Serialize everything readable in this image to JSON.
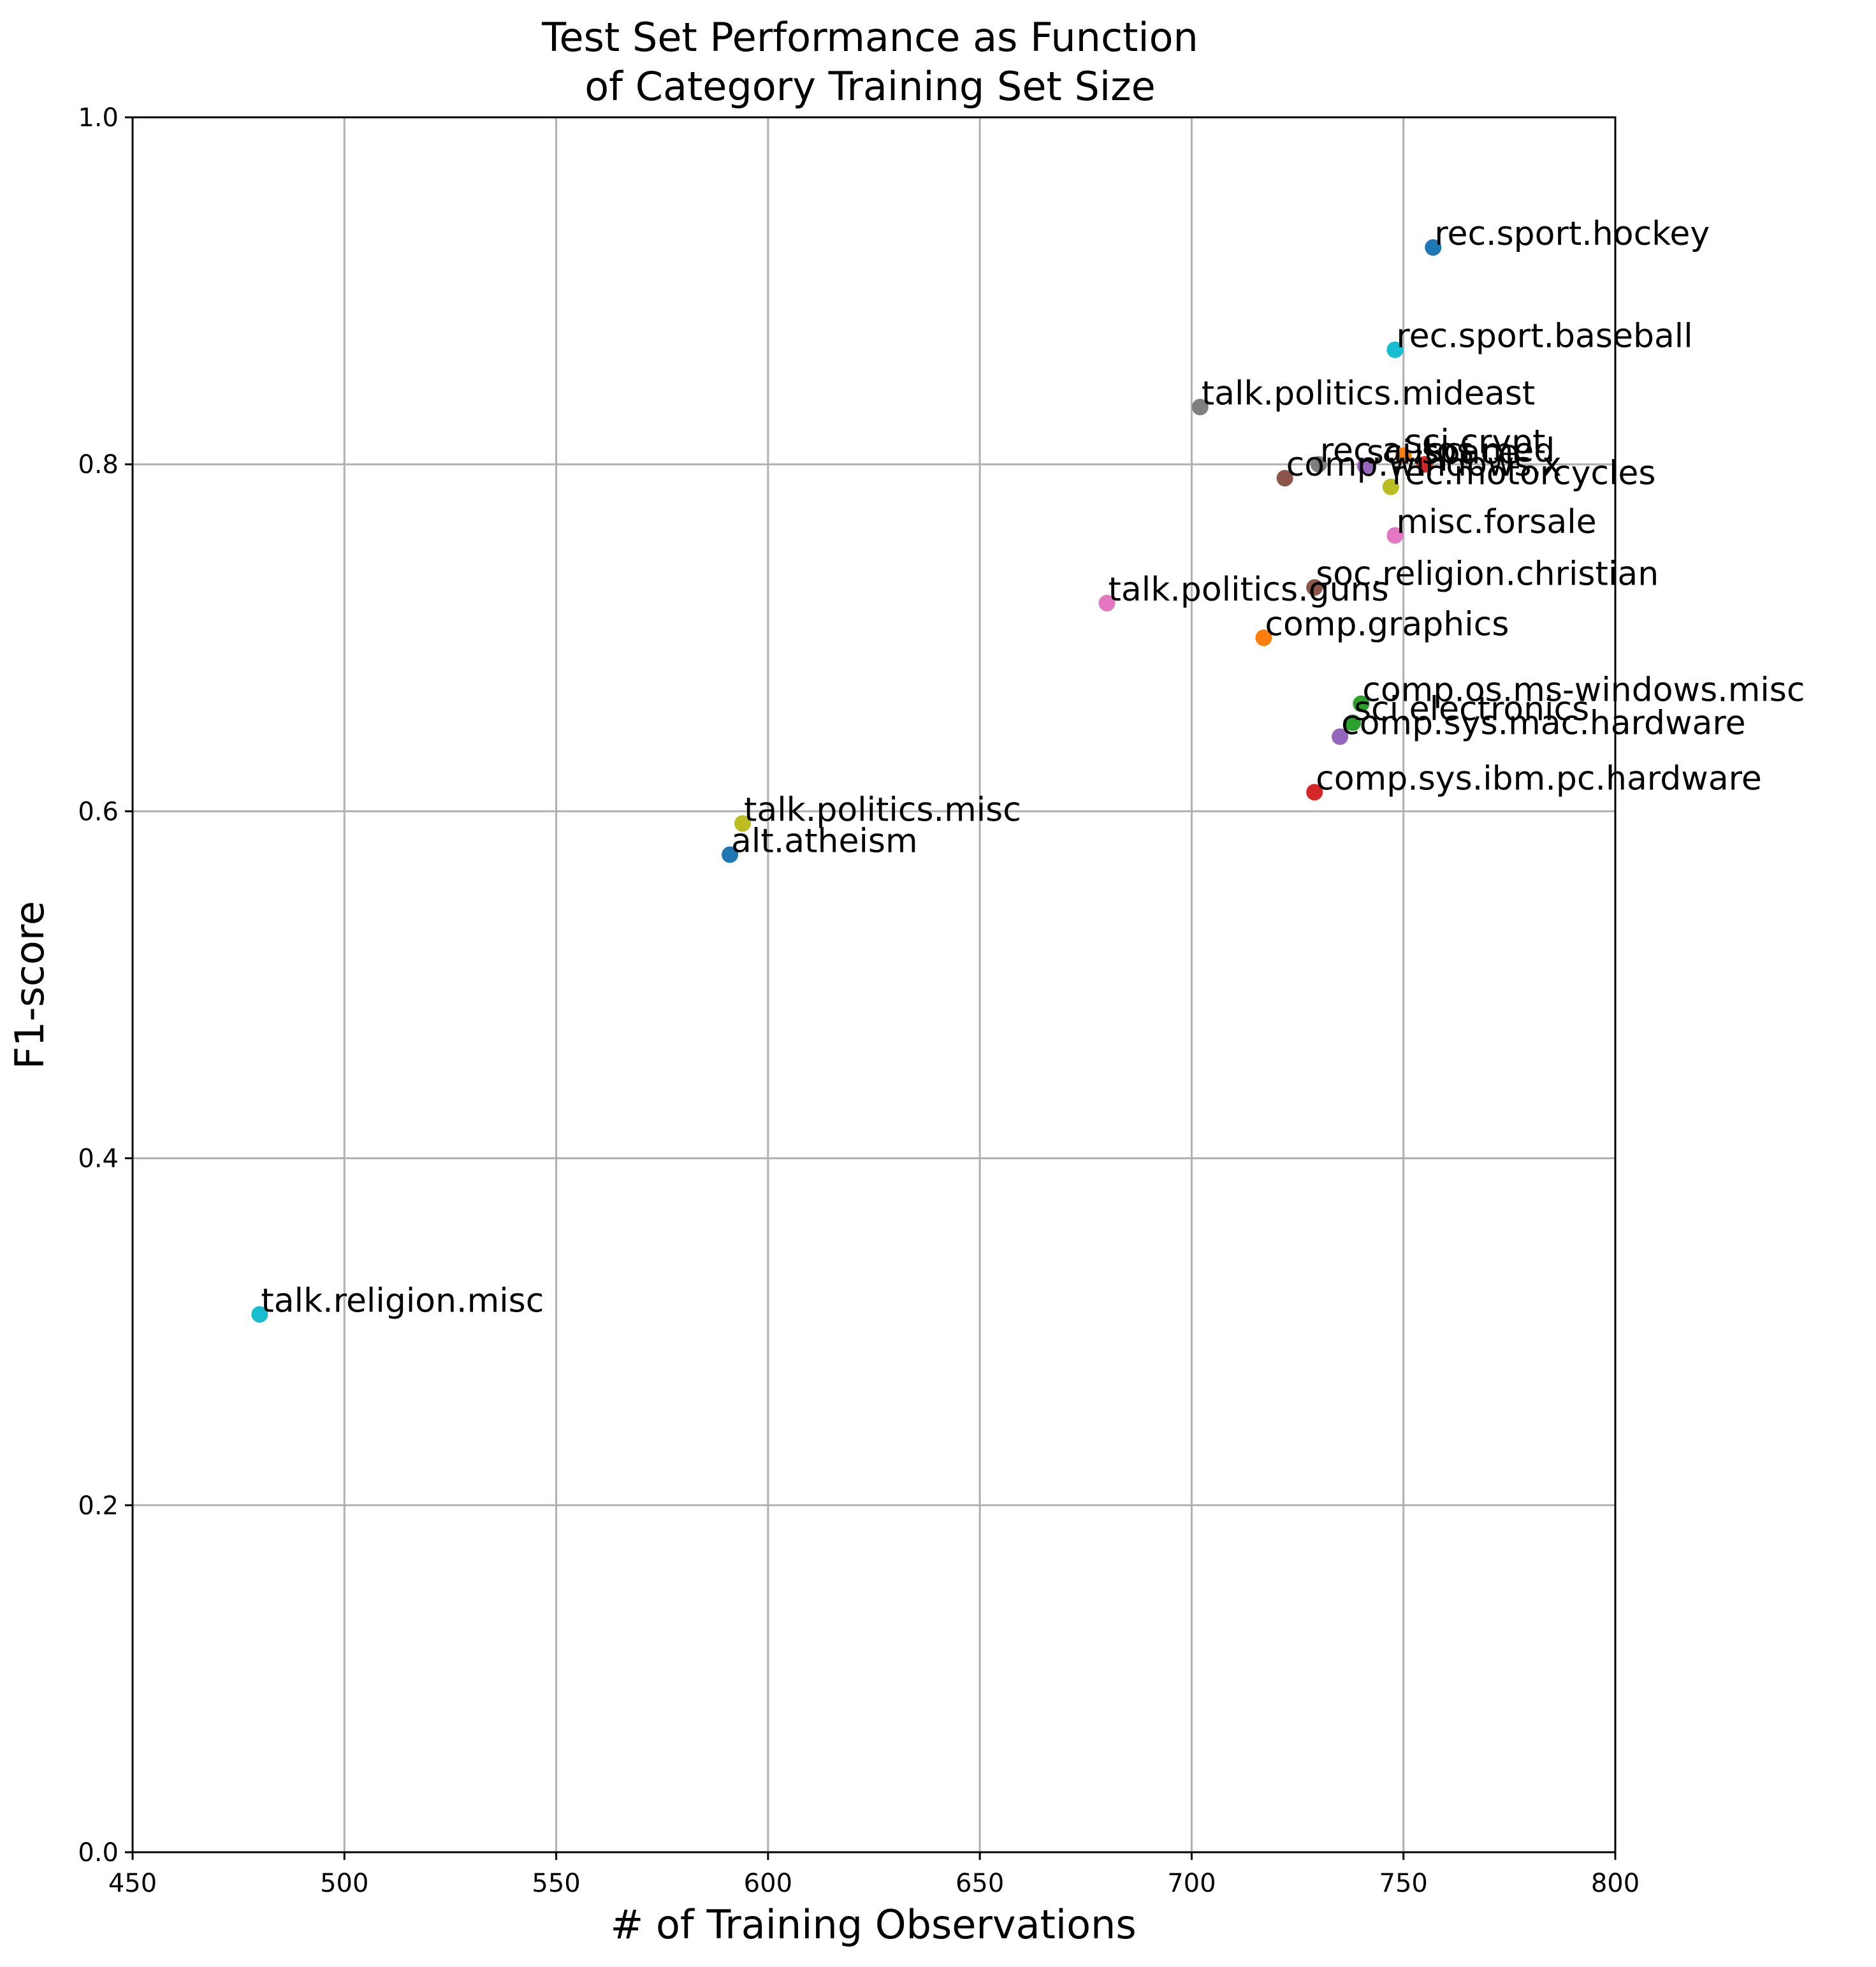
{
  "chart_data": {
    "type": "scatter",
    "title_lines": [
      "Test Set Performance as Function",
      "of Category Training Set Size"
    ],
    "xlabel": "# of Training Observations",
    "ylabel": "F1-score",
    "xlim": [
      450,
      800
    ],
    "ylim": [
      0.0,
      1.0
    ],
    "xticks": [
      "450",
      "500",
      "550",
      "600",
      "650",
      "700",
      "750",
      "800"
    ],
    "yticks": [
      "0.0",
      "0.2",
      "0.4",
      "0.6",
      "0.8",
      "1.0"
    ],
    "grid": true,
    "points": [
      {
        "label": "alt.atheism",
        "x": 591,
        "y": 0.575,
        "color": "#1f77b4"
      },
      {
        "label": "comp.graphics",
        "x": 717,
        "y": 0.7,
        "color": "#ff7f0e"
      },
      {
        "label": "comp.os.ms-windows.misc",
        "x": 740,
        "y": 0.662,
        "color": "#2ca02c"
      },
      {
        "label": "comp.sys.ibm.pc.hardware",
        "x": 729,
        "y": 0.611,
        "color": "#d62728"
      },
      {
        "label": "comp.sys.mac.hardware",
        "x": 735,
        "y": 0.643,
        "color": "#9467bd"
      },
      {
        "label": "comp.windows.x",
        "x": 722,
        "y": 0.792,
        "color": "#8c564b"
      },
      {
        "label": "misc.forsale",
        "x": 748,
        "y": 0.759,
        "color": "#e377c2"
      },
      {
        "label": "rec.autos",
        "x": 730,
        "y": 0.8,
        "color": "#7f7f7f"
      },
      {
        "label": "rec.motorcycles",
        "x": 747,
        "y": 0.787,
        "color": "#bcbd22"
      },
      {
        "label": "rec.sport.baseball",
        "x": 748,
        "y": 0.866,
        "color": "#17becf"
      },
      {
        "label": "rec.sport.hockey",
        "x": 757,
        "y": 0.925,
        "color": "#1f77b4"
      },
      {
        "label": "sci.crypt",
        "x": 750,
        "y": 0.805,
        "color": "#ff7f0e"
      },
      {
        "label": "sci.electronics",
        "x": 738,
        "y": 0.651,
        "color": "#2ca02c"
      },
      {
        "label": "sci.med",
        "x": 755,
        "y": 0.8,
        "color": "#d62728"
      },
      {
        "label": "sci.space",
        "x": 741,
        "y": 0.799,
        "color": "#9467bd"
      },
      {
        "label": "soc.religion.christian",
        "x": 729,
        "y": 0.729,
        "color": "#8c564b"
      },
      {
        "label": "talk.politics.guns",
        "x": 680,
        "y": 0.72,
        "color": "#e377c2"
      },
      {
        "label": "talk.politics.mideast",
        "x": 702,
        "y": 0.833,
        "color": "#7f7f7f"
      },
      {
        "label": "talk.politics.misc",
        "x": 594,
        "y": 0.593,
        "color": "#bcbd22"
      },
      {
        "label": "talk.religion.misc",
        "x": 480,
        "y": 0.31,
        "color": "#17becf"
      }
    ]
  }
}
